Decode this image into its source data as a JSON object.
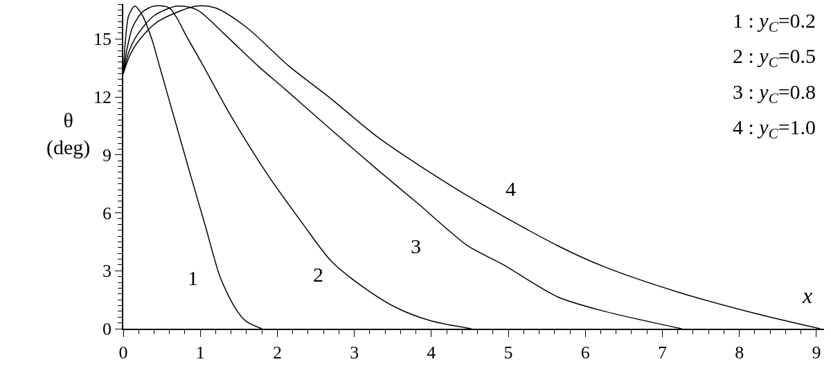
{
  "chart_data": {
    "type": "line",
    "xlabel": "x",
    "ylabel": "θ\n(deg)",
    "xlim": [
      0,
      9.1
    ],
    "ylim": [
      0,
      16.8
    ],
    "xticks": [
      0,
      1,
      2,
      3,
      4,
      5,
      6,
      7,
      8,
      9
    ],
    "yticks": [
      0,
      3,
      6,
      9,
      12,
      15
    ],
    "legend": false,
    "marker": "none",
    "line_style": "solid",
    "series": [
      {
        "name": "1",
        "color": "#000000",
        "x": [
          0,
          0.03,
          0.07,
          0.15,
          0.25,
          0.37,
          0.47,
          0.67,
          0.87,
          1.06,
          1.26,
          1.45,
          1.59,
          1.8
        ],
        "values": [
          13.2,
          15.0,
          16.2,
          16.7,
          16.2,
          15,
          13.6,
          10.8,
          8.0,
          5.4,
          2.65,
          1.1,
          0.4,
          0
        ]
      },
      {
        "name": "2",
        "color": "#000000",
        "x": [
          0,
          0.05,
          0.12,
          0.25,
          0.4,
          0.6,
          0.84,
          1.04,
          1.4,
          1.87,
          2.3,
          2.7,
          3.1,
          3.54,
          4.0,
          4.52
        ],
        "values": [
          13.2,
          14.5,
          15.6,
          16.4,
          16.7,
          16.6,
          15,
          13.6,
          11,
          8.0,
          5.6,
          3.5,
          2.2,
          1.1,
          0.4,
          0
        ]
      },
      {
        "name": "3",
        "color": "#000000",
        "x": [
          0,
          0.07,
          0.18,
          0.4,
          0.7,
          0.96,
          1.3,
          1.75,
          2.1,
          2.7,
          3.31,
          3.82,
          4.47,
          4.94,
          5.64,
          6.25,
          7.25
        ],
        "values": [
          13.2,
          14.3,
          15.2,
          16.2,
          16.7,
          16.5,
          15.3,
          13.6,
          12.4,
          10.3,
          8.2,
          6.5,
          4.3,
          3.3,
          1.65,
          0.9,
          0
        ]
      },
      {
        "name": "4",
        "color": "#000000",
        "x": [
          0,
          0.08,
          0.2,
          0.45,
          0.95,
          1.2,
          1.6,
          2.15,
          2.7,
          3.31,
          4.38,
          5.64,
          6.25,
          7.2,
          8.2,
          9.05
        ],
        "values": [
          13.2,
          14.1,
          14.9,
          15.9,
          16.7,
          16.6,
          15.6,
          13.6,
          11.9,
          9.9,
          7.1,
          4.3,
          3.2,
          1.9,
          0.8,
          0
        ]
      }
    ],
    "annotations": [
      "1 : y$_{C}$=0.2",
      "2 : y$_{C}$=0.5",
      "3 : y$_{C}$=0.8",
      "4 : y$_{C}$=1.0"
    ]
  }
}
